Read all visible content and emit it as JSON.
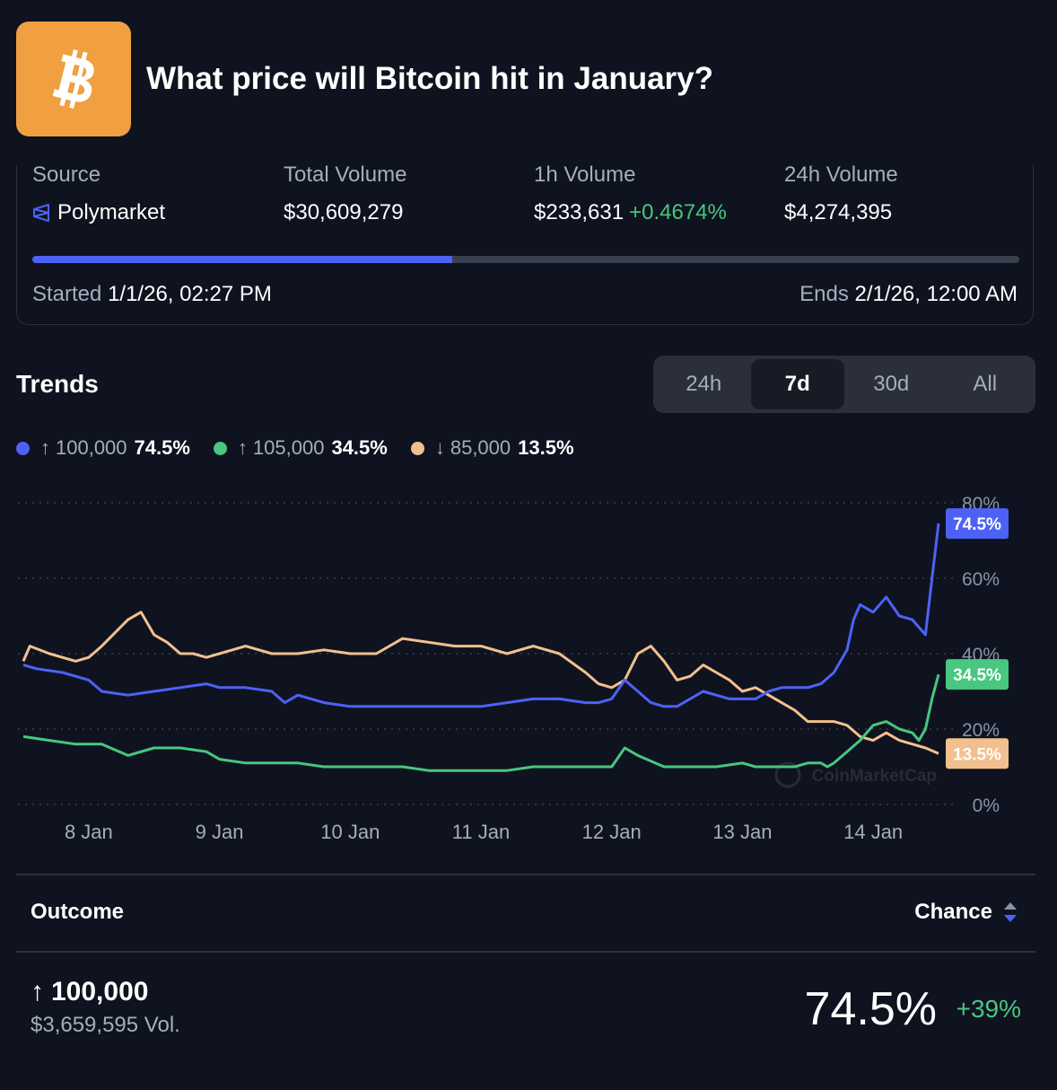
{
  "header": {
    "title": "What price will Bitcoin hit in January?"
  },
  "stats": {
    "source_label": "Source",
    "source_value": "Polymarket",
    "total_volume_label": "Total Volume",
    "total_volume_value": "$30,609,279",
    "h1_volume_label": "1h Volume",
    "h1_volume_value": "$233,631",
    "h1_volume_change": "+0.4674%",
    "h24_volume_label": "24h Volume",
    "h24_volume_value": "$4,274,395"
  },
  "progress": {
    "fraction": 0.425
  },
  "dates": {
    "started_label": "Started",
    "started_value": "1/1/26, 02:27 PM",
    "ends_label": "Ends",
    "ends_value": "2/1/26, 12:00 AM"
  },
  "trends": {
    "title": "Trends",
    "tabs": [
      "24h",
      "7d",
      "30d",
      "All"
    ],
    "active_tab": "7d"
  },
  "legend": [
    {
      "arrow": "↑",
      "name": "100,000",
      "value": "74.5%",
      "color": "#4d62f5"
    },
    {
      "arrow": "↑",
      "name": "105,000",
      "value": "34.5%",
      "color": "#47c77f"
    },
    {
      "arrow": "↓",
      "name": "85,000",
      "value": "13.5%",
      "color": "#f2c08e"
    }
  ],
  "chart_data": {
    "type": "line",
    "x_ticks": [
      "8 Jan",
      "9 Jan",
      "10 Jan",
      "11 Jan",
      "12 Jan",
      "13 Jan",
      "14 Jan"
    ],
    "x_range": [
      7.5,
      14.5
    ],
    "y_ticks": [
      "0%",
      "20%",
      "40%",
      "60%",
      "80%"
    ],
    "ylim": [
      0,
      80
    ],
    "watermark": "CoinMarketCap",
    "series": [
      {
        "name": "↑ 100,000",
        "color": "#4d62f5",
        "last_label": "74.5%",
        "x": [
          7.5,
          7.6,
          7.8,
          8.0,
          8.1,
          8.3,
          8.5,
          8.7,
          8.9,
          9.0,
          9.2,
          9.4,
          9.5,
          9.6,
          9.8,
          10.0,
          10.2,
          10.4,
          10.6,
          10.8,
          11.0,
          11.2,
          11.4,
          11.6,
          11.8,
          11.9,
          12.0,
          12.1,
          12.2,
          12.3,
          12.4,
          12.5,
          12.6,
          12.7,
          12.8,
          12.9,
          13.0,
          13.1,
          13.2,
          13.3,
          13.4,
          13.5,
          13.6,
          13.7,
          13.8,
          13.85,
          13.9,
          14.0,
          14.1,
          14.2,
          14.3,
          14.35,
          14.4,
          14.45,
          14.5
        ],
        "y": [
          37,
          36,
          35,
          33,
          30,
          29,
          30,
          31,
          32,
          31,
          31,
          30,
          27,
          29,
          27,
          26,
          26,
          26,
          26,
          26,
          26,
          27,
          28,
          28,
          27,
          27,
          28,
          33,
          30,
          27,
          26,
          26,
          28,
          30,
          29,
          28,
          28,
          28,
          30,
          31,
          31,
          31,
          32,
          35,
          41,
          49,
          53,
          51,
          55,
          50,
          49,
          47,
          45,
          60,
          74.5
        ]
      },
      {
        "name": "↑ 105,000",
        "color": "#47c77f",
        "last_label": "34.5%",
        "x": [
          7.5,
          7.7,
          7.9,
          8.1,
          8.3,
          8.5,
          8.7,
          8.9,
          9.0,
          9.2,
          9.4,
          9.6,
          9.8,
          10.0,
          10.2,
          10.4,
          10.6,
          10.8,
          11.0,
          11.2,
          11.4,
          11.6,
          11.8,
          11.9,
          12.0,
          12.1,
          12.2,
          12.4,
          12.6,
          12.8,
          13.0,
          13.1,
          13.2,
          13.3,
          13.4,
          13.5,
          13.6,
          13.65,
          13.7,
          13.8,
          13.9,
          14.0,
          14.1,
          14.2,
          14.3,
          14.35,
          14.4,
          14.45,
          14.5
        ],
        "y": [
          18,
          17,
          16,
          16,
          13,
          15,
          15,
          14,
          12,
          11,
          11,
          11,
          10,
          10,
          10,
          10,
          9,
          9,
          9,
          9,
          10,
          10,
          10,
          10,
          10,
          15,
          13,
          10,
          10,
          10,
          11,
          10,
          10,
          10,
          10,
          11,
          11,
          10,
          11,
          14,
          17,
          21,
          22,
          20,
          19,
          17,
          20,
          28,
          34.5
        ]
      },
      {
        "name": "↓ 85,000",
        "color": "#f2c08e",
        "last_label": "13.5%",
        "x": [
          7.5,
          7.55,
          7.7,
          7.9,
          8.0,
          8.1,
          8.3,
          8.4,
          8.5,
          8.6,
          8.7,
          8.8,
          8.9,
          9.0,
          9.2,
          9.4,
          9.6,
          9.8,
          10.0,
          10.2,
          10.4,
          10.6,
          10.8,
          11.0,
          11.2,
          11.4,
          11.6,
          11.8,
          11.9,
          12.0,
          12.1,
          12.2,
          12.3,
          12.4,
          12.5,
          12.6,
          12.7,
          12.8,
          12.9,
          13.0,
          13.1,
          13.2,
          13.3,
          13.4,
          13.5,
          13.6,
          13.7,
          13.8,
          13.9,
          14.0,
          14.1,
          14.2,
          14.3,
          14.4,
          14.5
        ],
        "y": [
          38,
          42,
          40,
          38,
          39,
          42,
          49,
          51,
          45,
          43,
          40,
          40,
          39,
          40,
          42,
          40,
          40,
          41,
          40,
          40,
          44,
          43,
          42,
          42,
          40,
          42,
          40,
          35,
          32,
          31,
          33,
          40,
          42,
          38,
          33,
          34,
          37,
          35,
          33,
          30,
          31,
          29,
          27,
          25,
          22,
          22,
          22,
          21,
          18,
          17,
          19,
          17,
          16,
          15,
          13.5
        ]
      }
    ]
  },
  "table": {
    "outcome_label": "Outcome",
    "chance_label": "Chance",
    "rows": [
      {
        "arrow": "↑",
        "name": "100,000",
        "volume": "$3,659,595 Vol.",
        "chance": "74.5%",
        "change": "+39%"
      }
    ]
  }
}
